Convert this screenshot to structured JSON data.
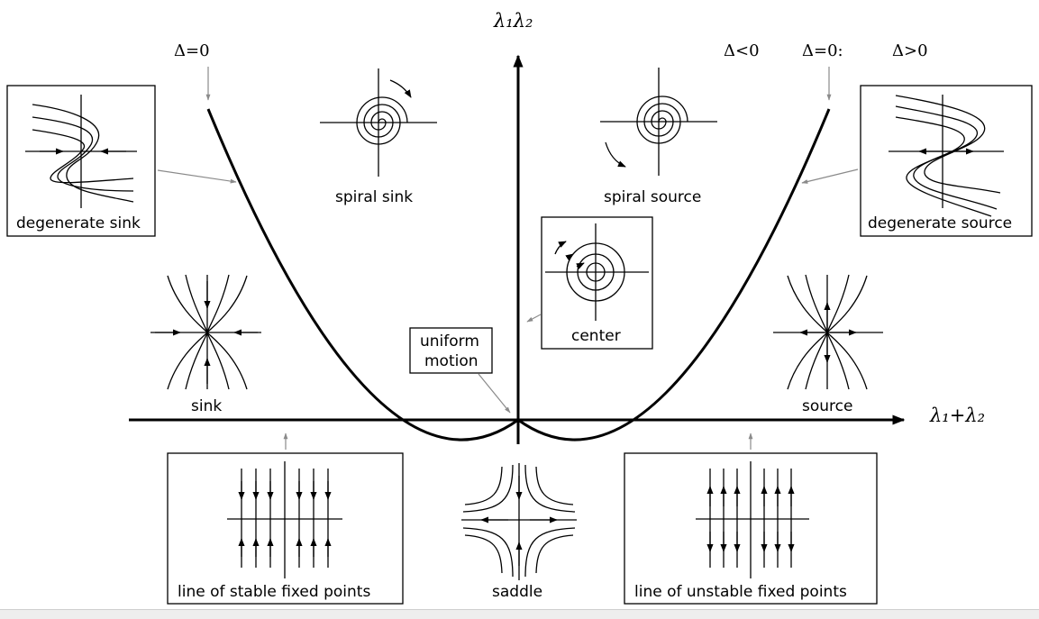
{
  "axes": {
    "y_label": "λ₁λ₂",
    "x_label": "λ₁+λ₂"
  },
  "discriminant": {
    "left": "Δ=0",
    "right_lt": "Δ<0",
    "right_eq": "Δ=0:",
    "right_gt": "Δ>0"
  },
  "regions": {
    "spiral_sink": "spiral sink",
    "spiral_source": "spiral source",
    "degenerate_sink": "degenerate sink",
    "degenerate_source": "degenerate source",
    "center": "center",
    "uniform_motion_1": "uniform",
    "uniform_motion_2": "motion",
    "sink": "sink",
    "source": "source",
    "saddle": "saddle",
    "stable_line": "line of stable fixed points",
    "unstable_line": "line of unstable fixed points"
  }
}
